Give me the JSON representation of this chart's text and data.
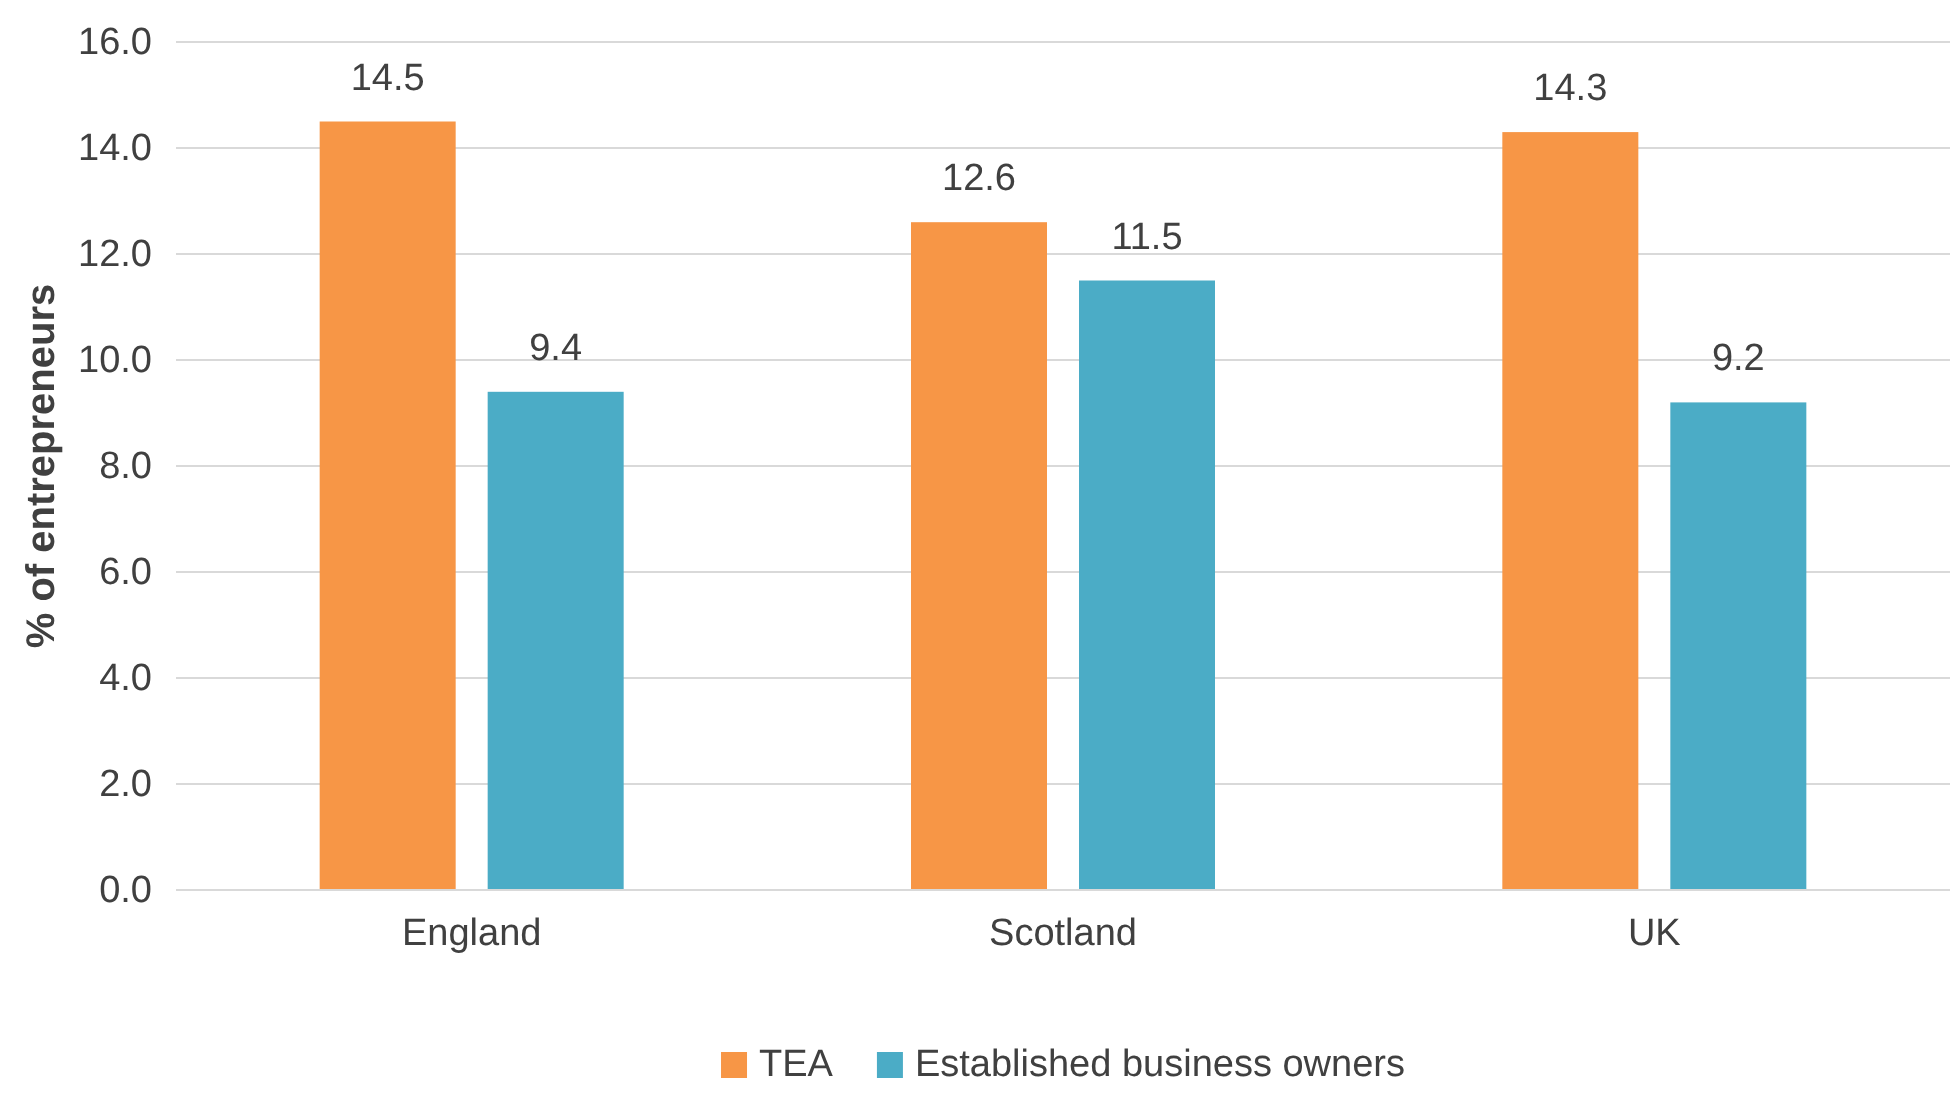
{
  "chart_data": {
    "type": "bar",
    "ylabel": "% of entrepreneurs",
    "categories": [
      "England",
      "Scotland",
      "UK"
    ],
    "series": [
      {
        "name": "TEA",
        "color": "#f79646",
        "values": [
          14.5,
          12.6,
          14.3
        ]
      },
      {
        "name": "Established business owners",
        "color": "#4bacc6",
        "values": [
          9.4,
          11.5,
          9.2
        ]
      }
    ],
    "ylim": [
      0,
      16
    ],
    "yticks": [
      {
        "value": 0,
        "label": "0.0"
      },
      {
        "value": 2,
        "label": "2.0"
      },
      {
        "value": 4,
        "label": "4.0"
      },
      {
        "value": 6,
        "label": "6.0"
      },
      {
        "value": 8,
        "label": "8.0"
      },
      {
        "value": 10,
        "label": "10.0"
      },
      {
        "value": 12,
        "label": "12.0"
      },
      {
        "value": 14,
        "label": "14.0"
      },
      {
        "value": 16,
        "label": "16.0"
      }
    ],
    "grid": "y",
    "legend": "bottom",
    "data_labels": true
  }
}
